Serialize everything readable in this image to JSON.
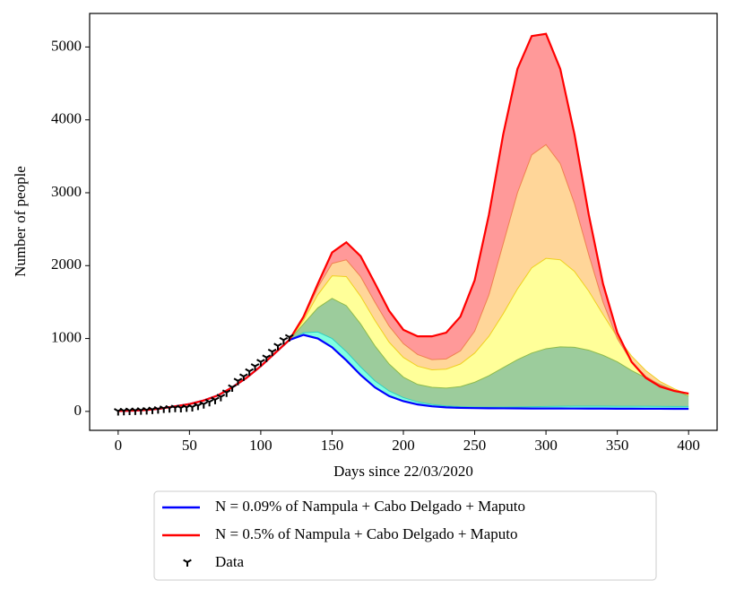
{
  "chart_data": {
    "type": "line",
    "xlabel": "Days since 22/03/2020",
    "ylabel": "Number of people",
    "xlim": [
      -20,
      420
    ],
    "ylim": [
      -260,
      5460
    ],
    "xticks": [
      0,
      50,
      100,
      150,
      200,
      250,
      300,
      350,
      400
    ],
    "yticks": [
      0,
      1000,
      2000,
      3000,
      4000,
      5000
    ],
    "legend": "bottom",
    "x": [
      0,
      10,
      20,
      30,
      40,
      50,
      60,
      70,
      80,
      90,
      100,
      110,
      120,
      130,
      140,
      150,
      160,
      170,
      180,
      190,
      200,
      210,
      220,
      230,
      240,
      250,
      260,
      270,
      280,
      290,
      300,
      310,
      320,
      330,
      340,
      350,
      360,
      370,
      380,
      390,
      400
    ],
    "series": [
      {
        "name": "N = 0.09% of Nampula + Cabo Delgado + Maputo",
        "color": "#0000ff",
        "width": 2.2,
        "values": [
          5,
          10,
          20,
          40,
          70,
          100,
          150,
          220,
          330,
          460,
          620,
          800,
          980,
          1050,
          1000,
          880,
          700,
          500,
          330,
          210,
          140,
          95,
          70,
          55,
          48,
          45,
          43,
          42,
          41,
          40,
          40,
          40,
          39,
          38,
          38,
          37,
          37,
          36,
          36,
          35,
          35
        ]
      },
      {
        "color": "#30d0c0",
        "fill": "#80ffe0",
        "width": 1,
        "values": [
          5,
          10,
          20,
          40,
          70,
          100,
          150,
          220,
          330,
          460,
          620,
          800,
          980,
          1080,
          1090,
          1000,
          820,
          610,
          420,
          280,
          190,
          130,
          95,
          75,
          65,
          60,
          58,
          60,
          62,
          65,
          68,
          70,
          72,
          72,
          72,
          71,
          70,
          70,
          69,
          68,
          68
        ]
      },
      {
        "color": "#8dbb4c",
        "fill": "#9ccc9c",
        "width": 1,
        "values": [
          5,
          10,
          20,
          40,
          70,
          100,
          150,
          220,
          330,
          460,
          620,
          800,
          980,
          1200,
          1420,
          1550,
          1450,
          1200,
          900,
          650,
          470,
          370,
          330,
          320,
          340,
          400,
          490,
          600,
          710,
          800,
          860,
          885,
          880,
          840,
          770,
          680,
          560,
          460,
          370,
          290,
          210
        ]
      },
      {
        "color": "#f0d020",
        "fill": "#ffff99",
        "width": 1,
        "values": [
          5,
          10,
          20,
          40,
          70,
          100,
          150,
          220,
          330,
          460,
          620,
          800,
          980,
          1250,
          1600,
          1860,
          1850,
          1580,
          1250,
          950,
          740,
          620,
          570,
          580,
          650,
          800,
          1030,
          1340,
          1680,
          1970,
          2100,
          2080,
          1920,
          1650,
          1330,
          1020,
          760,
          560,
          410,
          310,
          230
        ]
      },
      {
        "color": "#f08050",
        "fill": "#ffd699",
        "width": 1,
        "values": [
          5,
          10,
          20,
          40,
          70,
          100,
          150,
          220,
          330,
          460,
          620,
          800,
          980,
          1280,
          1700,
          2030,
          2080,
          1850,
          1500,
          1170,
          930,
          780,
          710,
          720,
          830,
          1100,
          1600,
          2300,
          3000,
          3520,
          3660,
          3400,
          2850,
          2150,
          1500,
          1000,
          680,
          480,
          360,
          290,
          235
        ]
      },
      {
        "name": "N = 0.5% of Nampula + Cabo Delgado + Maputo",
        "color": "#ff0000",
        "fill": "#ff9999",
        "width": 2.2,
        "values": [
          5,
          10,
          20,
          40,
          70,
          100,
          150,
          220,
          330,
          460,
          620,
          800,
          980,
          1300,
          1750,
          2180,
          2320,
          2130,
          1760,
          1380,
          1120,
          1030,
          1030,
          1080,
          1300,
          1800,
          2700,
          3800,
          4700,
          5150,
          5180,
          4700,
          3800,
          2700,
          1750,
          1080,
          680,
          460,
          340,
          280,
          245
        ]
      },
      {
        "name": "Data",
        "kind": "scatter",
        "color": "#000000",
        "x": [
          0,
          4,
          8,
          12,
          16,
          20,
          24,
          28,
          32,
          36,
          40,
          44,
          48,
          52,
          56,
          60,
          64,
          68,
          72,
          76,
          80,
          84,
          88,
          92,
          96,
          100,
          104,
          108,
          112,
          116,
          120
        ],
        "values": [
          5,
          8,
          10,
          12,
          15,
          18,
          25,
          30,
          40,
          45,
          50,
          48,
          55,
          60,
          80,
          100,
          130,
          160,
          200,
          260,
          330,
          420,
          480,
          550,
          620,
          680,
          740,
          820,
          900,
          980,
          1020
        ]
      }
    ]
  }
}
